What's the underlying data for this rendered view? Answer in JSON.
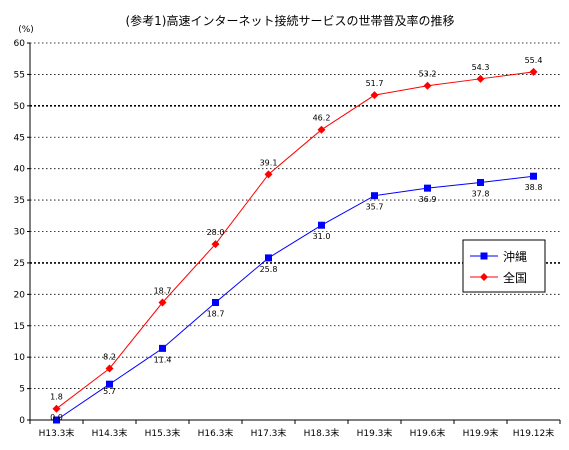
{
  "chart_data": {
    "type": "line",
    "title": "(参考1)高速インターネット接続サービスの世帯普及率の推移",
    "ylabel": "(%)",
    "xlabel": "",
    "categories": [
      "H13.3末",
      "H14.3末",
      "H15.3末",
      "H16.3末",
      "H17.3末",
      "H18.3末",
      "H19.3末",
      "H19.6末",
      "H19.9末",
      "H19.12末"
    ],
    "ylim": [
      0,
      60
    ],
    "yticks": [
      0,
      5,
      10,
      15,
      20,
      25,
      30,
      35,
      40,
      45,
      50,
      55,
      60
    ],
    "grid": true,
    "legend_position": "right",
    "series": [
      {
        "name": "沖縄",
        "color": "#0000ff",
        "marker": "square",
        "values": [
          0.0,
          5.7,
          11.4,
          18.7,
          25.8,
          31.0,
          35.7,
          36.9,
          37.8,
          38.8
        ],
        "labels": [
          "0.0",
          "5.7",
          "11.4",
          "18.7",
          "25.8",
          "31.0",
          "35.7",
          "36.9",
          "37.8",
          "38.8"
        ]
      },
      {
        "name": "全国",
        "color": "#ff0000",
        "marker": "diamond",
        "values": [
          1.8,
          8.2,
          18.7,
          28.0,
          39.1,
          46.2,
          51.7,
          53.2,
          54.3,
          55.4
        ],
        "labels": [
          "1.8",
          "8.2",
          "18.7",
          "28.0",
          "39.1",
          "46.2",
          "51.7",
          "53.2",
          "54.3",
          "55.4"
        ]
      }
    ]
  }
}
